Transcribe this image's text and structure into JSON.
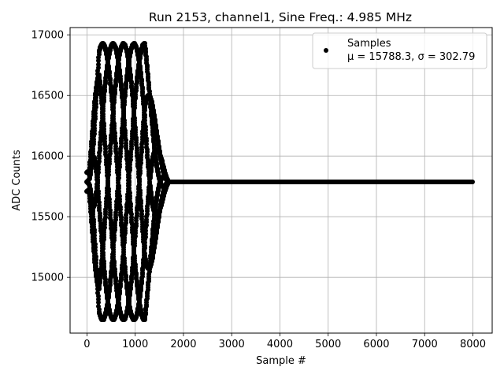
{
  "chart_data": {
    "type": "scatter",
    "title": "Run 2153, channel1, Sine Freq.: 4.985 MHz",
    "xlabel": "Sample #",
    "ylabel": "ADC Counts",
    "xlim": [
      -350,
      8400
    ],
    "ylim": [
      14540,
      17060
    ],
    "xticks": [
      0,
      1000,
      2000,
      3000,
      4000,
      5000,
      6000,
      7000,
      8000
    ],
    "yticks": [
      15000,
      15500,
      16000,
      16500,
      17000
    ],
    "grid": true,
    "legend_position": "top-right",
    "series": [
      {
        "name": "Samples",
        "legend_stats": "μ = 15788.3, σ = 302.79",
        "color": "#000000",
        "marker": "dot",
        "description_values": {
          "baseline": 15788.3,
          "burst_start": 0,
          "burst_end": 1700,
          "burst_peak_max": 16930,
          "burst_peak_min": 14650,
          "sample_count": 8000
        }
      }
    ]
  }
}
